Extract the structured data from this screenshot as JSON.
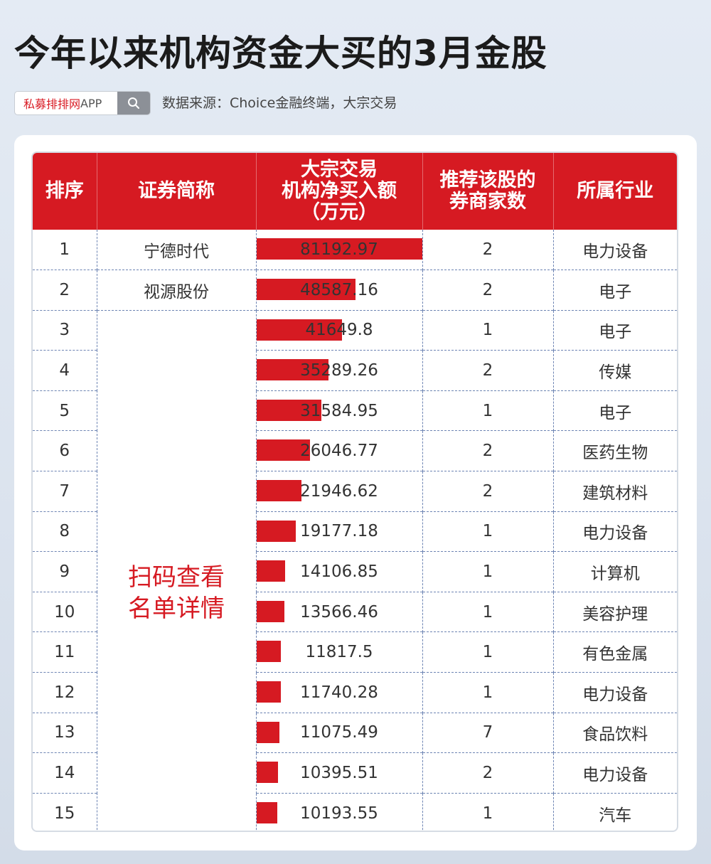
{
  "title": "今年以来机构资金大买的3月金股",
  "search": {
    "label_red": "私募排排网",
    "label_gray": "APP",
    "icon": "search-icon"
  },
  "source": "数据来源：Choice金融终端，大宗交易",
  "table": {
    "headers": [
      "排序",
      "证券简称",
      "大宗交易\n机构净买入额\n（万元）",
      "推荐该股的\n券商家数",
      "所属行业"
    ],
    "scan_note": "扫码查看\n名单详情",
    "bar_max": 81192.97,
    "rows": [
      {
        "rank": "1",
        "name": "宁德时代",
        "amount": "81192.97",
        "value": 81192.97,
        "brokers": "2",
        "industry": "电力设备"
      },
      {
        "rank": "2",
        "name": "视源股份",
        "amount": "48587.16",
        "value": 48587.16,
        "brokers": "2",
        "industry": "电子"
      },
      {
        "rank": "3",
        "name": "",
        "amount": "41649.8",
        "value": 41649.8,
        "brokers": "1",
        "industry": "电子"
      },
      {
        "rank": "4",
        "name": "",
        "amount": "35289.26",
        "value": 35289.26,
        "brokers": "2",
        "industry": "传媒"
      },
      {
        "rank": "5",
        "name": "",
        "amount": "31584.95",
        "value": 31584.95,
        "brokers": "1",
        "industry": "电子"
      },
      {
        "rank": "6",
        "name": "",
        "amount": "26046.77",
        "value": 26046.77,
        "brokers": "2",
        "industry": "医药生物"
      },
      {
        "rank": "7",
        "name": "",
        "amount": "21946.62",
        "value": 21946.62,
        "brokers": "2",
        "industry": "建筑材料"
      },
      {
        "rank": "8",
        "name": "",
        "amount": "19177.18",
        "value": 19177.18,
        "brokers": "1",
        "industry": "电力设备"
      },
      {
        "rank": "9",
        "name": "",
        "amount": "14106.85",
        "value": 14106.85,
        "brokers": "1",
        "industry": "计算机"
      },
      {
        "rank": "10",
        "name": "",
        "amount": "13566.46",
        "value": 13566.46,
        "brokers": "1",
        "industry": "美容护理"
      },
      {
        "rank": "11",
        "name": "",
        "amount": "11817.5",
        "value": 11817.5,
        "brokers": "1",
        "industry": "有色金属"
      },
      {
        "rank": "12",
        "name": "",
        "amount": "11740.28",
        "value": 11740.28,
        "brokers": "1",
        "industry": "电力设备"
      },
      {
        "rank": "13",
        "name": "",
        "amount": "11075.49",
        "value": 11075.49,
        "brokers": "7",
        "industry": "食品饮料"
      },
      {
        "rank": "14",
        "name": "",
        "amount": "10395.51",
        "value": 10395.51,
        "brokers": "2",
        "industry": "电力设备"
      },
      {
        "rank": "15",
        "name": "",
        "amount": "10193.55",
        "value": 10193.55,
        "brokers": "1",
        "industry": "汽车"
      }
    ]
  }
}
